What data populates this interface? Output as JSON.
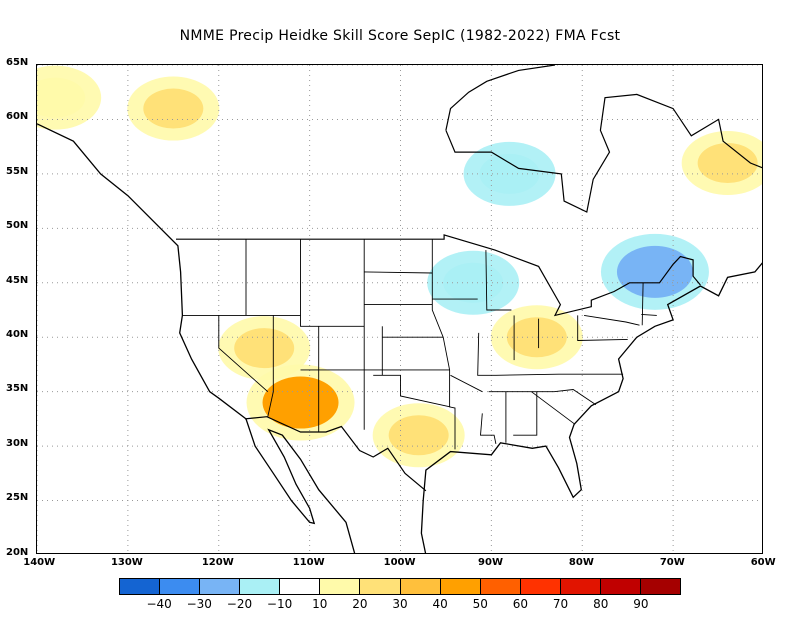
{
  "title": "NMME Precip Heidke Skill Score SepIC (1982-2022) FMA Fcst",
  "map": {
    "latitude_labels": [
      "65N",
      "60N",
      "55N",
      "50N",
      "45N",
      "40N",
      "35N",
      "30N",
      "25N",
      "20N"
    ],
    "longitude_labels": [
      "140W",
      "130W",
      "120W",
      "110W",
      "100W",
      "90W",
      "80W",
      "70W",
      "60W"
    ],
    "extent": {
      "lon_min": -140,
      "lon_max": -60,
      "lat_min": 20,
      "lat_max": 65
    },
    "regions": [
      {
        "name": "southwest-us-positive",
        "lon": -111,
        "lat": 34,
        "value": 40
      },
      {
        "name": "great-basin-positive",
        "lon": -115,
        "lat": 39,
        "value": 25
      },
      {
        "name": "texas-positive",
        "lon": -98,
        "lat": 31,
        "value": 25
      },
      {
        "name": "ohio-valley-positive",
        "lon": -85,
        "lat": 40,
        "value": 20
      },
      {
        "name": "hudson-bay-negative",
        "lon": -88,
        "lat": 55,
        "value": -20
      },
      {
        "name": "quebec-negative",
        "lon": -72,
        "lat": 46,
        "value": -30
      },
      {
        "name": "great-lakes-negative",
        "lon": -92,
        "lat": 45,
        "value": -15
      },
      {
        "name": "labrador-positive",
        "lon": -64,
        "lat": 56,
        "value": 25
      },
      {
        "name": "yukon-positive",
        "lon": -125,
        "lat": 61,
        "value": 20
      },
      {
        "name": "alaska-positive",
        "lon": -138,
        "lat": 62,
        "value": 15
      }
    ]
  },
  "colorbar": {
    "colors": [
      "#1464d2",
      "#3c8cf0",
      "#78b4f5",
      "#aaf0f5",
      "#ffffff",
      "#fffaaa",
      "#ffe178",
      "#ffc03c",
      "#ffa000",
      "#ff6000",
      "#ff3200",
      "#e11400",
      "#c00000",
      "#a50000"
    ],
    "labels": [
      "−40",
      "−30",
      "−20",
      "−10",
      "10",
      "20",
      "30",
      "40",
      "50",
      "60",
      "70",
      "80",
      "90"
    ]
  }
}
